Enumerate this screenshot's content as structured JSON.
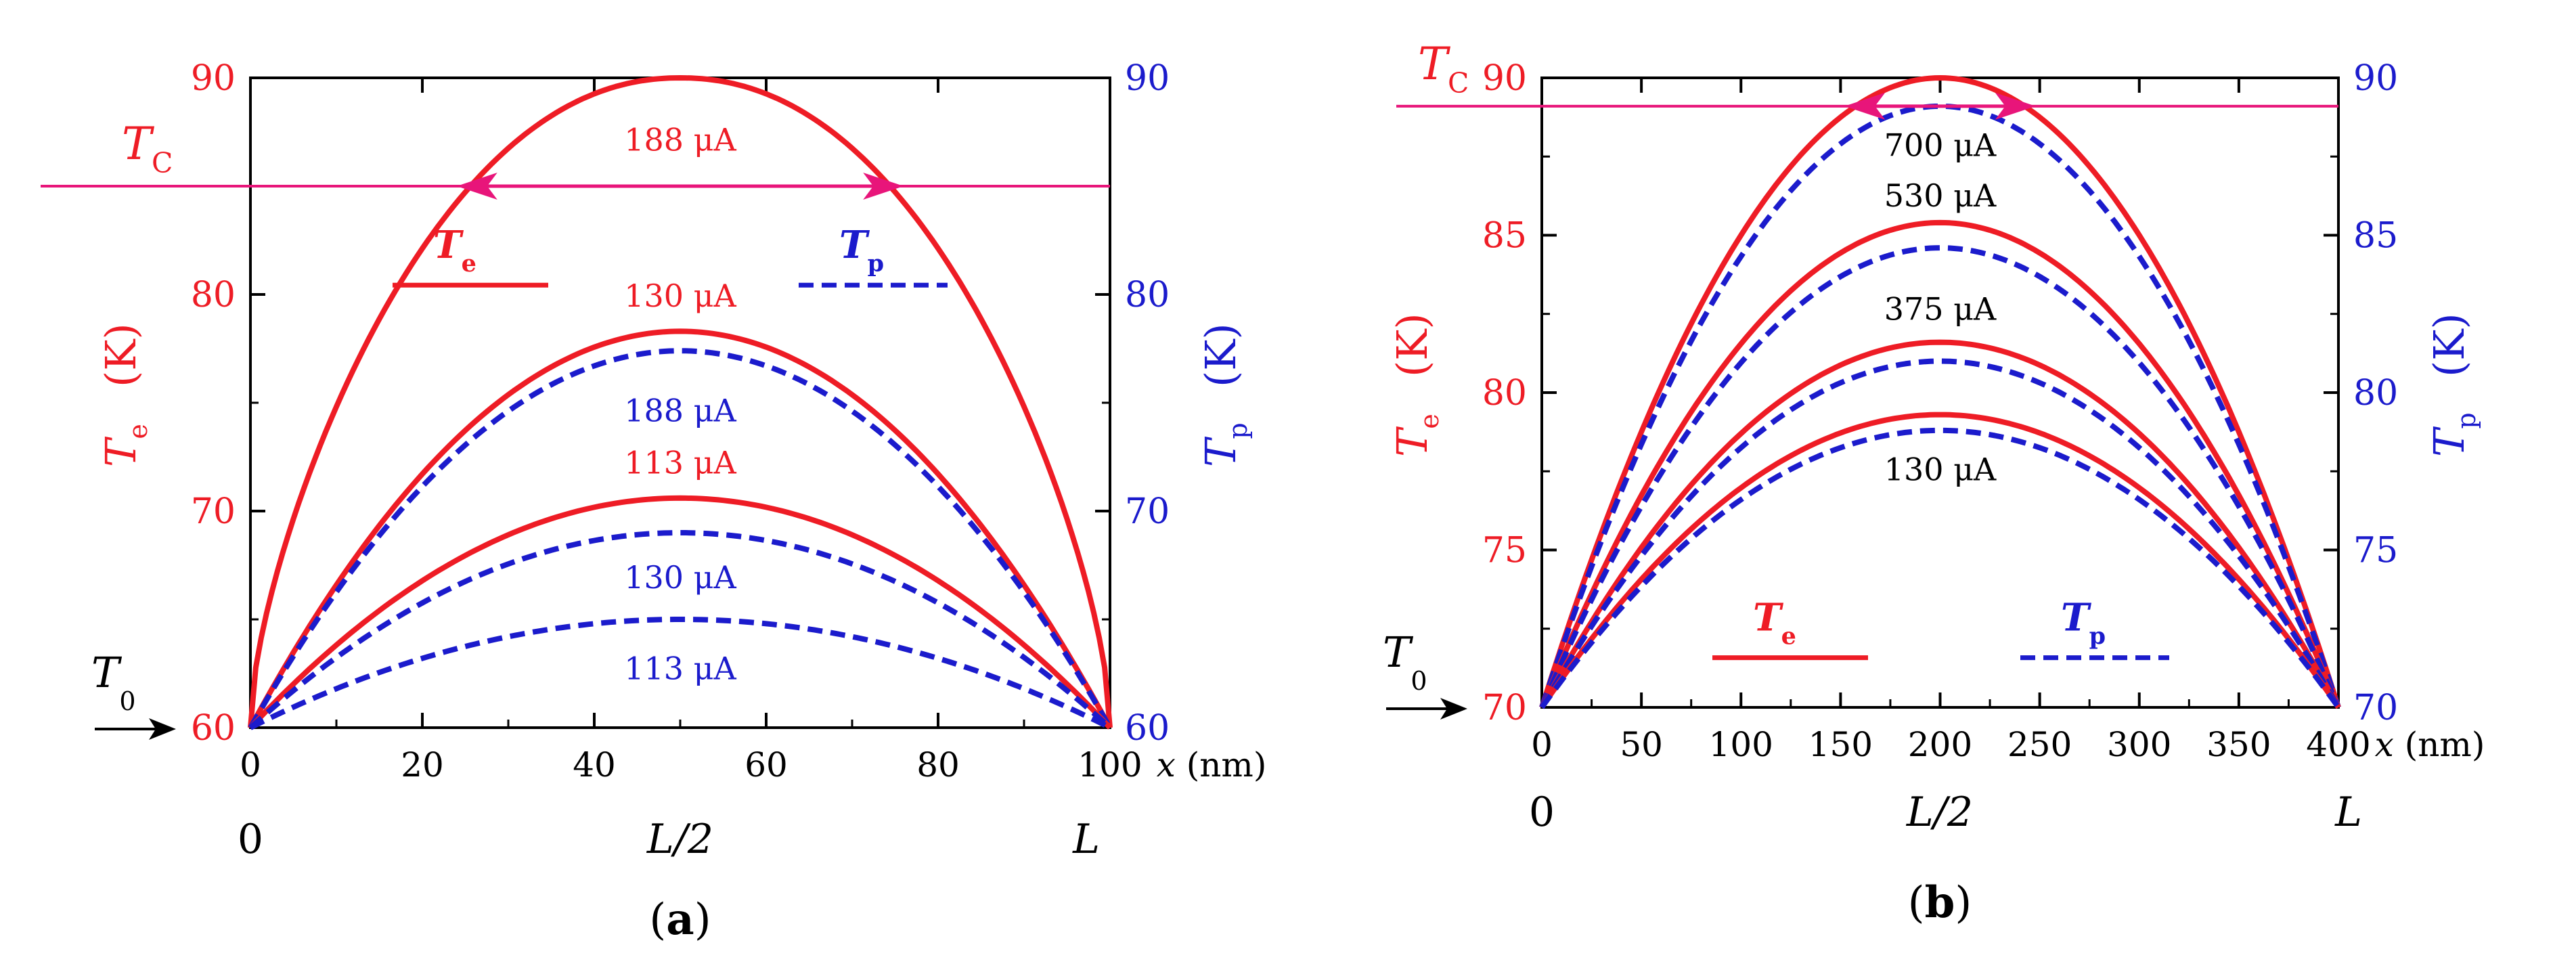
{
  "colors": {
    "te": "#ee1c25",
    "tp": "#1b1bcc",
    "tc": "#e8157a",
    "axis": "#000000"
  },
  "chart_data": [
    {
      "panel_label": "(a)",
      "type": "line",
      "xlabel": "x (nm)",
      "xlim": [
        0,
        100
      ],
      "xticks": [
        0,
        20,
        40,
        60,
        80,
        100
      ],
      "ylim_left": [
        60,
        90
      ],
      "yticks_left": [
        60,
        70,
        80,
        90
      ],
      "ylim_right": [
        60,
        90
      ],
      "yticks_right": [
        60,
        70,
        80,
        90
      ],
      "ylabel_left": {
        "main": "T",
        "sub": "e",
        "unit": "(K)"
      },
      "ylabel_right": {
        "main": "T",
        "sub": "p",
        "unit": "(K)"
      },
      "position_labels": [
        "0",
        "L/2",
        "L"
      ],
      "tc": {
        "label_main": "T",
        "label_sub": "C",
        "value": 85,
        "arrow_x": [
          24,
          76
        ]
      },
      "t0": {
        "label_main": "T",
        "label_sub": "0"
      },
      "legend": {
        "te_main": "T",
        "te_sub": "e",
        "tp_main": "T",
        "tp_sub": "p"
      },
      "series": [
        {
          "name": "Te 188 μA",
          "kind": "Te",
          "current": "188 μA",
          "peak": 90.0,
          "shape": 0.25,
          "label_y": 87.2
        },
        {
          "name": "Te 130 μA",
          "kind": "Te",
          "current": "130 μA",
          "peak": 78.3,
          "shape": 1.0,
          "label_y": 80.0
        },
        {
          "name": "Tp 188 μA",
          "kind": "Tp",
          "current": "188 μA",
          "peak": 77.4,
          "shape": 1.0,
          "label_y": 74.7
        },
        {
          "name": "Te 113 μA",
          "kind": "Te",
          "current": "113 μA",
          "peak": 70.6,
          "shape": 1.0,
          "label_y": 72.3
        },
        {
          "name": "Tp 130 μA",
          "kind": "Tp",
          "current": "130 μA",
          "peak": 69.0,
          "shape": 1.0,
          "label_y": 67.0
        },
        {
          "name": "Tp 113 μA",
          "kind": "Tp",
          "current": "113 μA",
          "peak": 65.0,
          "shape": 1.0,
          "label_y": 62.8
        }
      ]
    },
    {
      "panel_label": "(b)",
      "type": "line",
      "xlabel": "x (nm)",
      "xlim": [
        0,
        400
      ],
      "xticks": [
        0,
        50,
        100,
        150,
        200,
        250,
        300,
        350,
        400
      ],
      "ylim_left": [
        70,
        90
      ],
      "yticks_left": [
        70,
        75,
        80,
        85,
        90
      ],
      "ylim_right": [
        70,
        90
      ],
      "yticks_right": [
        70,
        75,
        80,
        85,
        90
      ],
      "ylabel_left": {
        "main": "T",
        "sub": "e",
        "unit": "(K)"
      },
      "ylabel_right": {
        "main": "T",
        "sub": "p",
        "unit": "(K)"
      },
      "position_labels": [
        "0",
        "L/2",
        "L"
      ],
      "tc": {
        "label_main": "T",
        "label_sub": "C",
        "value": 89.1,
        "arrow_x": [
          152,
          248
        ]
      },
      "t0": {
        "label_main": "T",
        "label_sub": "0"
      },
      "legend": {
        "te_main": "T",
        "te_sub": "e",
        "tp_main": "T",
        "tp_sub": "p"
      },
      "series": [
        {
          "name": "Te 700 μA",
          "kind": "Te",
          "current": "",
          "peak": 90.0,
          "shape": 1.0,
          "label_y": null
        },
        {
          "name": "Tp 700 μA",
          "kind": "Tp",
          "current": "700 μA",
          "peak": 89.1,
          "shape": 1.0,
          "label_y": 87.9
        },
        {
          "name": "Te 530 μA",
          "kind": "Te",
          "current": "530 μA",
          "peak": 85.4,
          "shape": 1.0,
          "label_y": 86.3
        },
        {
          "name": "Tp 530 μA",
          "kind": "Tp",
          "current": "",
          "peak": 84.6,
          "shape": 1.0,
          "label_y": null
        },
        {
          "name": "Te 375 μA",
          "kind": "Te",
          "current": "375 μA",
          "peak": 81.6,
          "shape": 1.0,
          "label_y": 82.7
        },
        {
          "name": "Tp 375 μA",
          "kind": "Tp",
          "current": "",
          "peak": 81.0,
          "shape": 1.0,
          "label_y": null
        },
        {
          "name": "Te 130 μA",
          "kind": "Te",
          "current": "",
          "peak": 79.3,
          "shape": 1.0,
          "label_y": null
        },
        {
          "name": "Tp 130 μA",
          "kind": "Tp",
          "current": "130 μA",
          "peak": 78.8,
          "shape": 1.0,
          "label_y": 77.6
        }
      ]
    }
  ]
}
